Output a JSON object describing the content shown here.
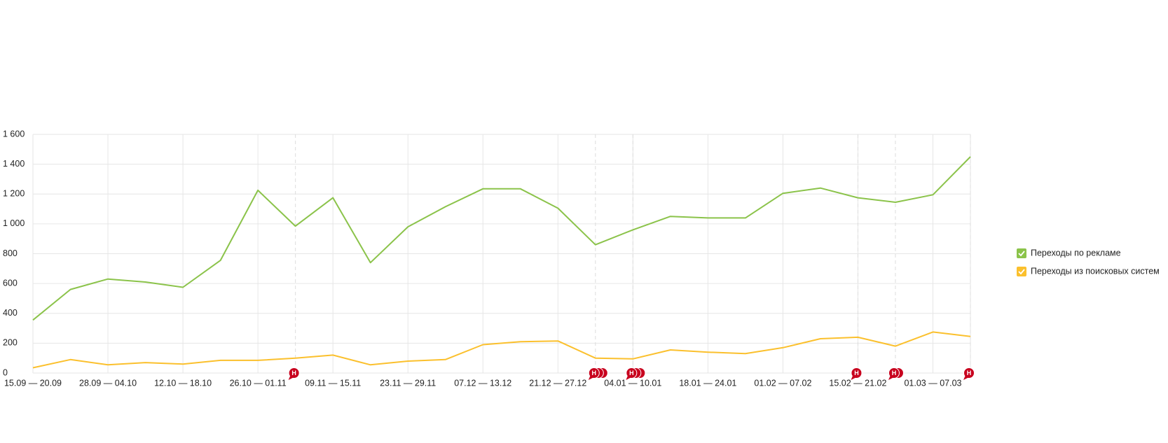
{
  "chart_data": {
    "type": "line",
    "categories": [
      "15.09 — 20.09",
      null,
      "28.09 — 04.10",
      null,
      "12.10 — 18.10",
      null,
      "26.10 — 01.11",
      null,
      "09.11 — 15.11",
      null,
      "23.11 — 29.11",
      null,
      "07.12 — 13.12",
      null,
      "21.12 — 27.12",
      null,
      "04.01 — 10.01",
      null,
      "18.01 — 24.01",
      null,
      "01.02 — 07.02",
      null,
      "15.02 — 21.02",
      null,
      "01.03 — 07.03",
      null
    ],
    "series": [
      {
        "name": "Переходы по рекламе",
        "color": "#8bc34a",
        "values": [
          355,
          560,
          630,
          610,
          575,
          755,
          1225,
          985,
          1175,
          740,
          980,
          1115,
          1235,
          1235,
          1105,
          860,
          960,
          1050,
          1040,
          1040,
          1205,
          1240,
          1175,
          1145,
          1195,
          1450
        ]
      },
      {
        "name": "Переходы из поисковых систем",
        "color": "#fbc02d",
        "values": [
          35,
          90,
          55,
          70,
          60,
          85,
          85,
          100,
          120,
          55,
          80,
          90,
          190,
          210,
          215,
          100,
          95,
          155,
          140,
          130,
          170,
          230,
          240,
          180,
          275,
          245
        ]
      }
    ],
    "ylim": [
      0,
      1600
    ],
    "yticks": [
      0,
      200,
      400,
      600,
      800,
      {
        "value": 1000,
        "label": "1 000"
      },
      {
        "value": 1200,
        "label": "1 200"
      },
      {
        "value": 1400,
        "label": "1 400"
      },
      {
        "value": 1600,
        "label": "1 600"
      }
    ],
    "grid": true,
    "legend": "right",
    "markers": [
      {
        "x": 7,
        "count": 1,
        "label": "Н"
      },
      {
        "x": 15,
        "count": 3,
        "label": "Н"
      },
      {
        "x": 16,
        "count": 3,
        "label": "Н"
      },
      {
        "x": 22,
        "count": 1,
        "label": "Н"
      },
      {
        "x": 23,
        "count": 2,
        "label": "Н"
      },
      {
        "x": 25,
        "count": 1,
        "label": "Н"
      }
    ],
    "marker_color": "#c8001e"
  }
}
